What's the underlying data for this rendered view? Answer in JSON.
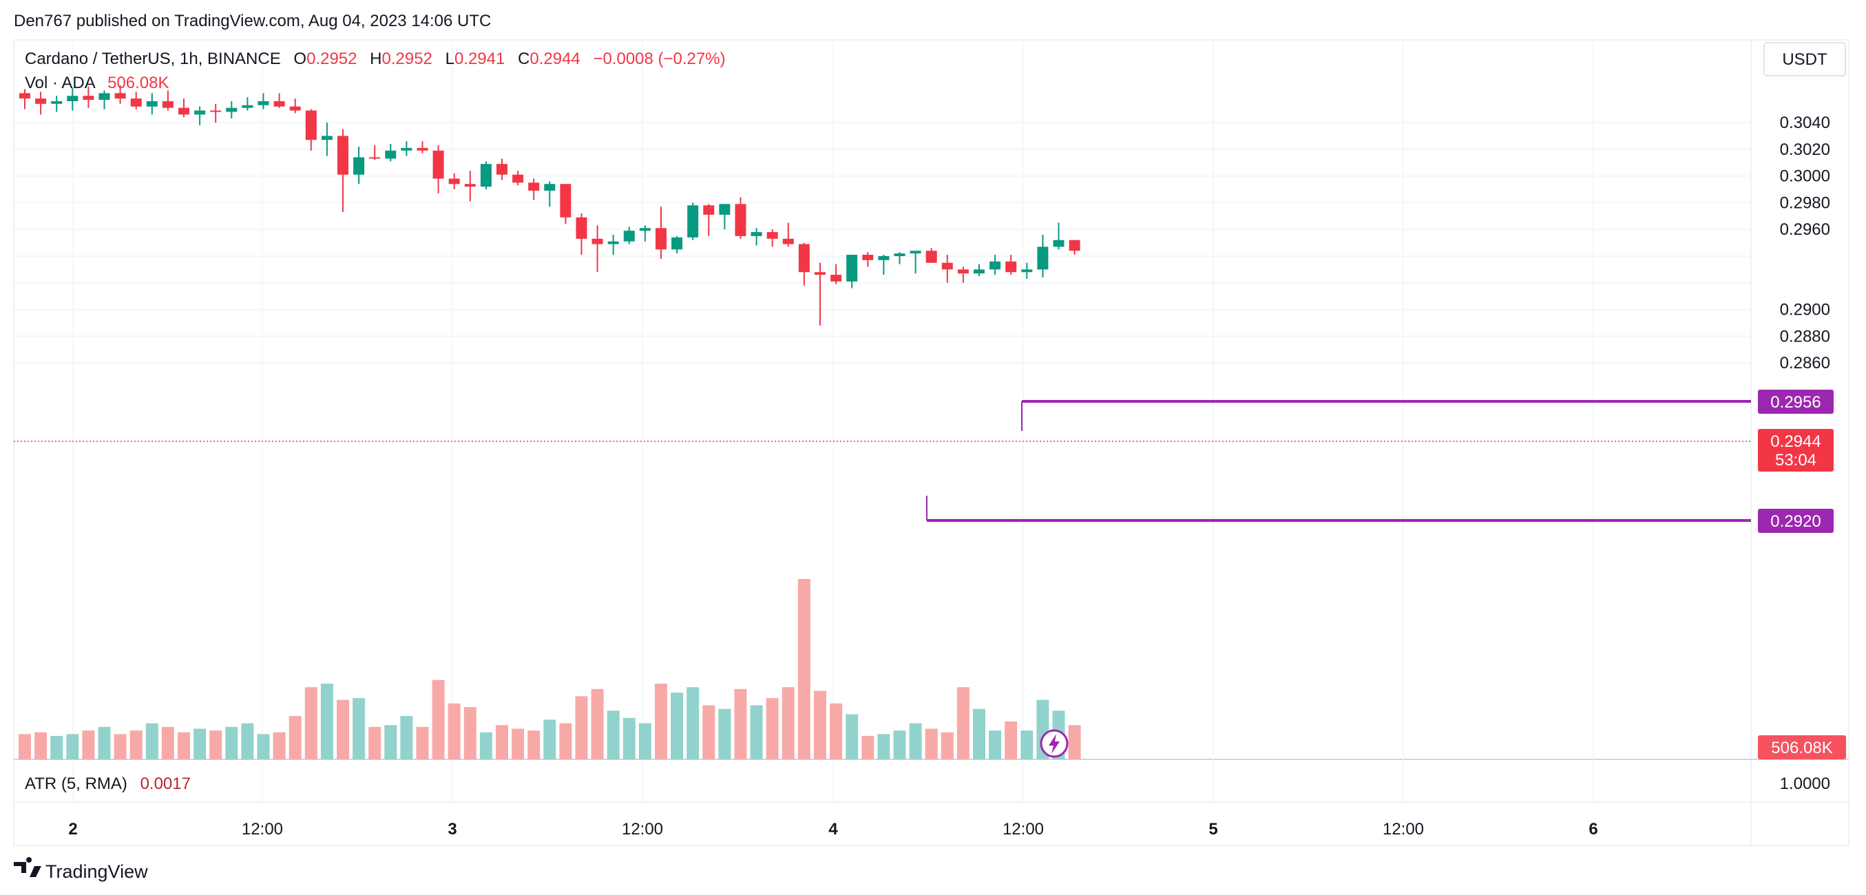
{
  "header": {
    "publisher_line": "Den767 published on TradingView.com, Aug 04, 2023 14:06 UTC"
  },
  "legend": {
    "symbol": "Cardano / TetherUS, 1h, BINANCE",
    "o_label": "O",
    "o_value": "0.2952",
    "h_label": "H",
    "h_value": "0.2952",
    "l_label": "L",
    "l_value": "0.2941",
    "c_label": "C",
    "c_value": "0.2944",
    "change": "−0.0008 (−0.27%)",
    "vol_label": "Vol · ADA",
    "vol_value": "506.08K",
    "atr_label": "ATR (5, RMA)",
    "atr_value": "0.0017"
  },
  "currency_button": "USDT",
  "price_axis": {
    "ticks": [
      "0.3040",
      "0.3020",
      "0.3000",
      "0.2980",
      "0.2960",
      "0.2900",
      "0.2880",
      "0.2860"
    ],
    "tick_values": [
      0.304,
      0.302,
      0.3,
      0.298,
      0.296,
      0.29,
      0.288,
      0.286
    ],
    "atr_tick": "1.0000"
  },
  "price_labels": {
    "upper_level": "0.2956",
    "last_price": "0.2944",
    "countdown": "53:04",
    "lower_level": "0.2920",
    "volume": "506.08K"
  },
  "time_axis": {
    "labels": [
      "2",
      "12:00",
      "3",
      "12:00",
      "4",
      "12:00",
      "5",
      "12:00",
      "6"
    ],
    "bold": [
      true,
      false,
      true,
      false,
      true,
      false,
      true,
      false,
      true
    ]
  },
  "footer": {
    "brand": "TradingView"
  },
  "colors": {
    "up": "#089981",
    "down": "#f23645",
    "vol_up": "#92d2cc",
    "vol_down": "#f7a9a7",
    "level": "#9c27b0",
    "grid": "#f0f3fa",
    "text": "#131722"
  },
  "chart_data": {
    "type": "candlestick",
    "symbol": "Cardano / TetherUS",
    "interval": "1h",
    "exchange": "BINANCE",
    "levels": [
      0.2956,
      0.292
    ],
    "last_price": 0.2944,
    "candles": [
      {
        "o": 0.3062,
        "h": 0.3065,
        "l": 0.305,
        "c": 0.3058
      },
      {
        "o": 0.3058,
        "h": 0.3063,
        "l": 0.3046,
        "c": 0.3054
      },
      {
        "o": 0.3054,
        "h": 0.306,
        "l": 0.3048,
        "c": 0.3056
      },
      {
        "o": 0.3056,
        "h": 0.3066,
        "l": 0.3049,
        "c": 0.306
      },
      {
        "o": 0.306,
        "h": 0.3067,
        "l": 0.3051,
        "c": 0.3057
      },
      {
        "o": 0.3057,
        "h": 0.3064,
        "l": 0.305,
        "c": 0.3062
      },
      {
        "o": 0.3062,
        "h": 0.3068,
        "l": 0.3054,
        "c": 0.3058
      },
      {
        "o": 0.3058,
        "h": 0.3063,
        "l": 0.305,
        "c": 0.3052
      },
      {
        "o": 0.3052,
        "h": 0.3062,
        "l": 0.3046,
        "c": 0.3056
      },
      {
        "o": 0.3056,
        "h": 0.3064,
        "l": 0.3049,
        "c": 0.3051
      },
      {
        "o": 0.3051,
        "h": 0.3058,
        "l": 0.3044,
        "c": 0.3046
      },
      {
        "o": 0.3046,
        "h": 0.3052,
        "l": 0.3038,
        "c": 0.3049
      },
      {
        "o": 0.3049,
        "h": 0.3054,
        "l": 0.304,
        "c": 0.3048
      },
      {
        "o": 0.3048,
        "h": 0.3056,
        "l": 0.3043,
        "c": 0.3051
      },
      {
        "o": 0.3051,
        "h": 0.3059,
        "l": 0.3049,
        "c": 0.3053
      },
      {
        "o": 0.3053,
        "h": 0.3062,
        "l": 0.305,
        "c": 0.3056
      },
      {
        "o": 0.3056,
        "h": 0.3062,
        "l": 0.3051,
        "c": 0.3052
      },
      {
        "o": 0.3052,
        "h": 0.3058,
        "l": 0.3047,
        "c": 0.3049
      },
      {
        "o": 0.3049,
        "h": 0.305,
        "l": 0.3019,
        "c": 0.3027
      },
      {
        "o": 0.3027,
        "h": 0.304,
        "l": 0.3015,
        "c": 0.303
      },
      {
        "o": 0.303,
        "h": 0.3035,
        "l": 0.2973,
        "c": 0.3001
      },
      {
        "o": 0.3001,
        "h": 0.3022,
        "l": 0.2994,
        "c": 0.3014
      },
      {
        "o": 0.3014,
        "h": 0.3023,
        "l": 0.3012,
        "c": 0.3013
      },
      {
        "o": 0.3013,
        "h": 0.3024,
        "l": 0.3011,
        "c": 0.3019
      },
      {
        "o": 0.3019,
        "h": 0.3026,
        "l": 0.3015,
        "c": 0.3021
      },
      {
        "o": 0.3021,
        "h": 0.3026,
        "l": 0.3017,
        "c": 0.3019
      },
      {
        "o": 0.3019,
        "h": 0.3023,
        "l": 0.2987,
        "c": 0.2998
      },
      {
        "o": 0.2998,
        "h": 0.3002,
        "l": 0.299,
        "c": 0.2994
      },
      {
        "o": 0.2994,
        "h": 0.3004,
        "l": 0.2981,
        "c": 0.2992
      },
      {
        "o": 0.2992,
        "h": 0.3011,
        "l": 0.299,
        "c": 0.3009
      },
      {
        "o": 0.3009,
        "h": 0.3013,
        "l": 0.2997,
        "c": 0.3001
      },
      {
        "o": 0.3001,
        "h": 0.3004,
        "l": 0.2993,
        "c": 0.2995
      },
      {
        "o": 0.2995,
        "h": 0.2998,
        "l": 0.2982,
        "c": 0.2989
      },
      {
        "o": 0.2989,
        "h": 0.2996,
        "l": 0.2977,
        "c": 0.2994
      },
      {
        "o": 0.2994,
        "h": 0.2994,
        "l": 0.2964,
        "c": 0.2969
      },
      {
        "o": 0.2969,
        "h": 0.2972,
        "l": 0.2941,
        "c": 0.2953
      },
      {
        "o": 0.2953,
        "h": 0.2963,
        "l": 0.2928,
        "c": 0.2949
      },
      {
        "o": 0.2949,
        "h": 0.2956,
        "l": 0.2941,
        "c": 0.2951
      },
      {
        "o": 0.2951,
        "h": 0.2962,
        "l": 0.2949,
        "c": 0.2959
      },
      {
        "o": 0.2959,
        "h": 0.2963,
        "l": 0.2951,
        "c": 0.2961
      },
      {
        "o": 0.2961,
        "h": 0.2977,
        "l": 0.2938,
        "c": 0.2945
      },
      {
        "o": 0.2945,
        "h": 0.2955,
        "l": 0.2942,
        "c": 0.2954
      },
      {
        "o": 0.2954,
        "h": 0.298,
        "l": 0.2952,
        "c": 0.2978
      },
      {
        "o": 0.2978,
        "h": 0.2979,
        "l": 0.2955,
        "c": 0.2971
      },
      {
        "o": 0.2971,
        "h": 0.2979,
        "l": 0.296,
        "c": 0.2979
      },
      {
        "o": 0.2979,
        "h": 0.2984,
        "l": 0.2953,
        "c": 0.2955
      },
      {
        "o": 0.2955,
        "h": 0.2961,
        "l": 0.2948,
        "c": 0.2958
      },
      {
        "o": 0.2958,
        "h": 0.296,
        "l": 0.2947,
        "c": 0.2953
      },
      {
        "o": 0.2953,
        "h": 0.2965,
        "l": 0.2947,
        "c": 0.2949
      },
      {
        "o": 0.2949,
        "h": 0.295,
        "l": 0.2918,
        "c": 0.2928
      },
      {
        "o": 0.2928,
        "h": 0.2935,
        "l": 0.2888,
        "c": 0.2926
      },
      {
        "o": 0.2926,
        "h": 0.2934,
        "l": 0.2919,
        "c": 0.2921
      },
      {
        "o": 0.2921,
        "h": 0.2941,
        "l": 0.2916,
        "c": 0.2941
      },
      {
        "o": 0.2941,
        "h": 0.2943,
        "l": 0.2932,
        "c": 0.2937
      },
      {
        "o": 0.2937,
        "h": 0.2941,
        "l": 0.2926,
        "c": 0.294
      },
      {
        "o": 0.294,
        "h": 0.2943,
        "l": 0.2934,
        "c": 0.2942
      },
      {
        "o": 0.2942,
        "h": 0.2944,
        "l": 0.2927,
        "c": 0.2944
      },
      {
        "o": 0.2944,
        "h": 0.2946,
        "l": 0.2935,
        "c": 0.2935
      },
      {
        "o": 0.2935,
        "h": 0.2941,
        "l": 0.292,
        "c": 0.293
      },
      {
        "o": 0.293,
        "h": 0.2932,
        "l": 0.292,
        "c": 0.2927
      },
      {
        "o": 0.2927,
        "h": 0.2934,
        "l": 0.2925,
        "c": 0.293
      },
      {
        "o": 0.293,
        "h": 0.2941,
        "l": 0.2926,
        "c": 0.2936
      },
      {
        "o": 0.2936,
        "h": 0.2941,
        "l": 0.2926,
        "c": 0.2928
      },
      {
        "o": 0.2928,
        "h": 0.2935,
        "l": 0.2923,
        "c": 0.293
      },
      {
        "o": 0.293,
        "h": 0.2956,
        "l": 0.2924,
        "c": 0.2947
      },
      {
        "o": 0.2947,
        "h": 0.2965,
        "l": 0.2945,
        "c": 0.2952
      },
      {
        "o": 0.2952,
        "h": 0.2952,
        "l": 0.2941,
        "c": 0.2944
      }
    ],
    "volume_scale": [
      0,
      100
    ],
    "volumes": [
      14,
      15,
      13,
      14,
      16,
      18,
      14,
      16,
      20,
      18,
      15,
      17,
      16,
      18,
      20,
      14,
      15,
      24,
      40,
      42,
      33,
      34,
      18,
      19,
      24,
      18,
      44,
      31,
      29,
      15,
      19,
      17,
      16,
      22,
      20,
      35,
      39,
      27,
      23,
      20,
      42,
      37,
      40,
      30,
      28,
      39,
      30,
      34,
      40,
      100,
      38,
      31,
      25,
      13,
      14,
      16,
      20,
      17,
      15,
      40,
      28,
      16,
      21,
      16,
      33,
      27,
      19
    ],
    "atr": {
      "label": "ATR (5, RMA)",
      "value": 0.0017
    }
  }
}
